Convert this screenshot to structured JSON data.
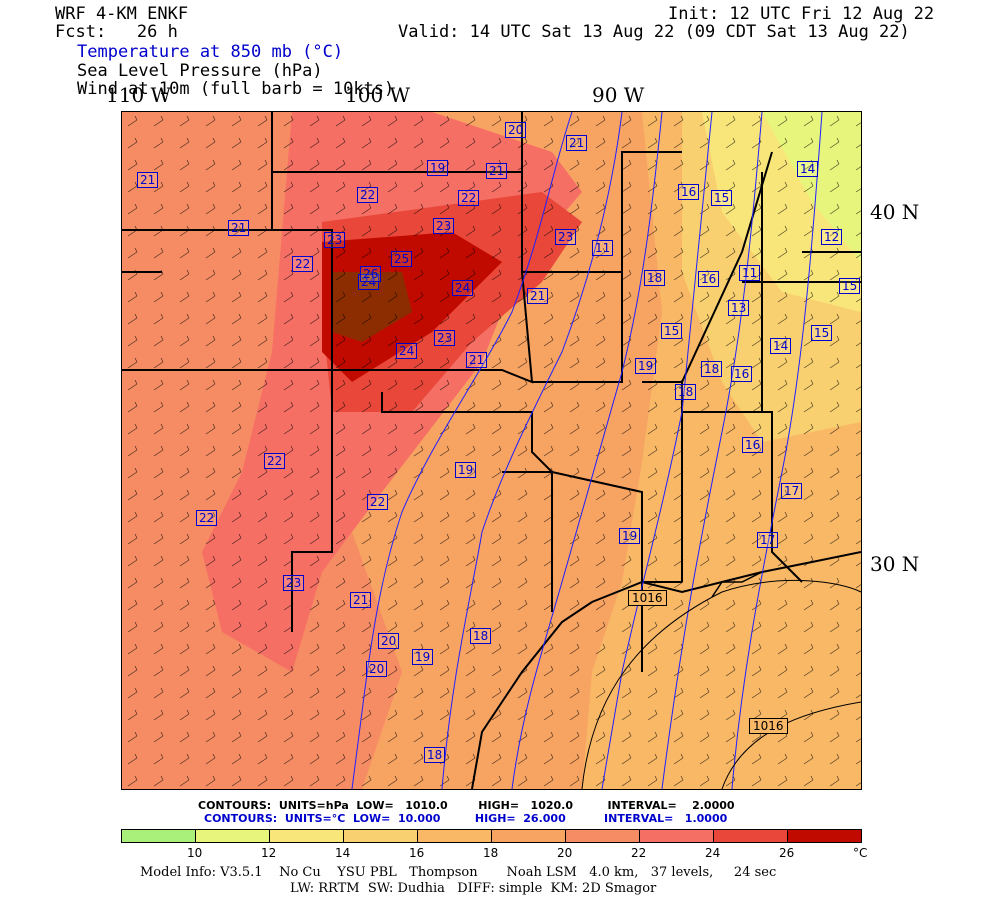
{
  "header": {
    "model": "WRF 4-KM ENKF",
    "fcst": "Fcst:   26 h",
    "init": "Init: 12 UTC Fri 12 Aug 22",
    "valid": "Valid: 14 UTC Sat 13 Aug 22 (09 CDT Sat 13 Aug 22)",
    "field1": "Temperature at 850 mb (°C)",
    "field2": "Sea Level Pressure (hPa)",
    "field3": "Wind at 10m (full barb = 10kts)"
  },
  "axes": {
    "lon_110": "110 W",
    "lon_100": "100 W",
    "lon_90": "90 W",
    "lat_40": "40 N",
    "lat_30": "30 N"
  },
  "contour_info": {
    "slp": "CONTOURS:  UNITS=hPa  LOW=   1010.0        HIGH=   1020.0         INTERVAL=    2.0000",
    "temp": "CONTOURS:  UNITS=°C  LOW=  10.000         HIGH=  26.000          INTERVAL=   1.0000"
  },
  "legend": {
    "colors": [
      "#a8f07a",
      "#e8f57c",
      "#f9e67a",
      "#f9d070",
      "#f9b866",
      "#f7a362",
      "#f68c64",
      "#f56f64",
      "#e8473a",
      "#c00a00",
      "#8b2d00"
    ],
    "ticks": [
      "10",
      "12",
      "14",
      "16",
      "18",
      "20",
      "22",
      "24",
      "26",
      "°C"
    ]
  },
  "temp_labels": [
    "21",
    "20",
    "19",
    "21",
    "21",
    "22",
    "22",
    "23",
    "21",
    "23",
    "22",
    "23",
    "24",
    "25",
    "26",
    "24",
    "23",
    "24",
    "21",
    "21",
    "22",
    "22",
    "21",
    "20",
    "19",
    "22",
    "23",
    "18",
    "19",
    "20",
    "18",
    "19",
    "18",
    "16",
    "16",
    "15",
    "13",
    "14",
    "15",
    "15",
    "14",
    "12",
    "11",
    "11",
    "15",
    "16",
    "17",
    "17",
    "16",
    "19",
    "18",
    "18"
  ],
  "pressure_labels": [
    "1016",
    "1016"
  ],
  "footer": {
    "model_info": "Model Info: V3.5.1    No Cu    YSU PBL   Thompson       Noah LSM   4.0 km,   37 levels,     24 sec",
    "model_info2": "LW: RRTM  SW: Dudhia   DIFF: simple  KM: 2D Smagor"
  }
}
